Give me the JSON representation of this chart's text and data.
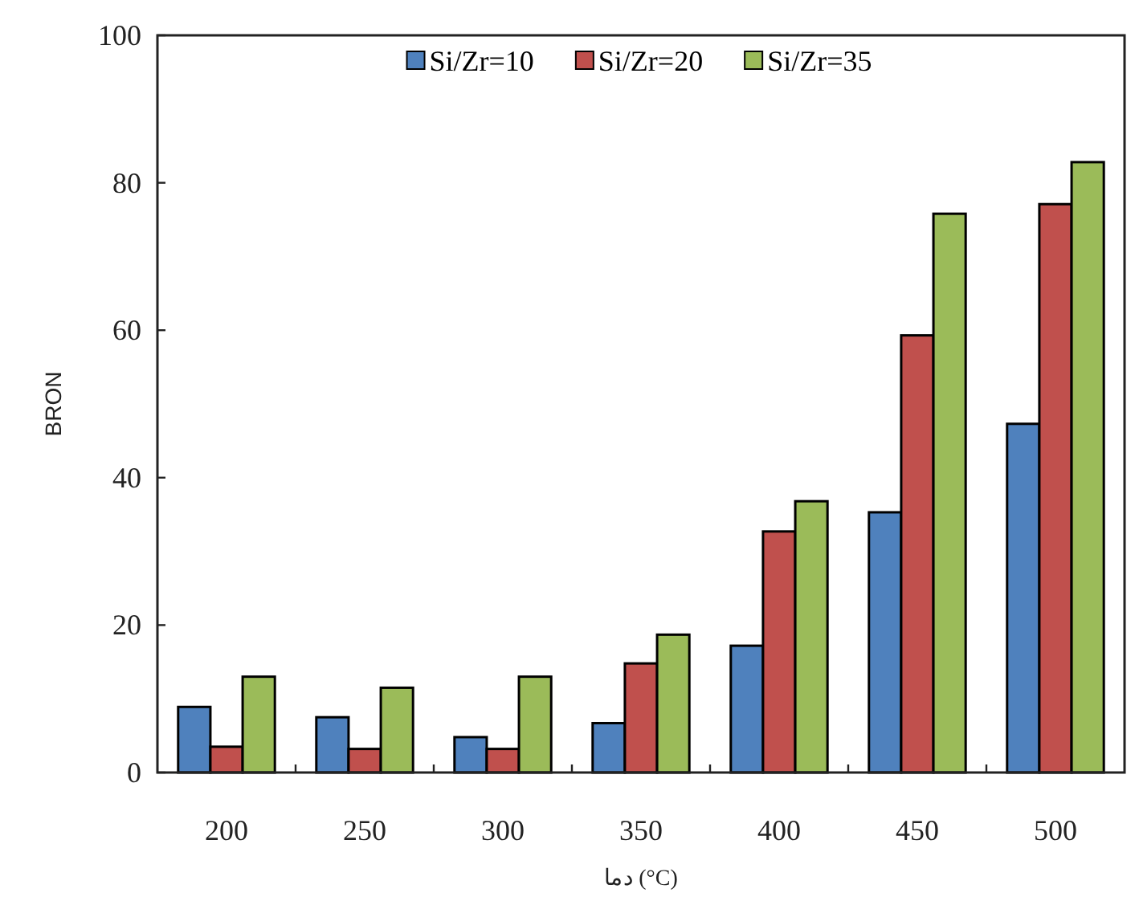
{
  "chart_data": {
    "type": "bar",
    "xlabel": "دما (°C)",
    "ylabel": "BRON",
    "categories": [
      "200",
      "250",
      "300",
      "350",
      "400",
      "450",
      "500"
    ],
    "series": [
      {
        "name": "Si/Zr=10",
        "color": "#4f81bd",
        "values": [
          8.9,
          7.5,
          4.8,
          6.7,
          17.2,
          35.3,
          47.3
        ]
      },
      {
        "name": "Si/Zr=20",
        "color": "#c0504d",
        "values": [
          3.5,
          3.2,
          3.2,
          14.8,
          32.7,
          59.3,
          77.1
        ]
      },
      {
        "name": "Si/Zr=35",
        "color": "#9bbb59",
        "values": [
          13,
          11.5,
          13,
          18.7,
          36.8,
          75.8,
          82.8
        ]
      }
    ],
    "ylim": [
      0,
      100
    ],
    "yticks": [
      0,
      20,
      40,
      60,
      80,
      100
    ],
    "legend": "top"
  }
}
